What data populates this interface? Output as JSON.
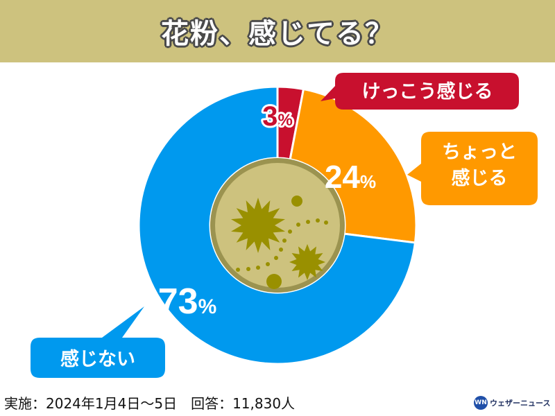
{
  "title": "花粉、感じてる？",
  "chart_data": {
    "type": "pie",
    "donut": true,
    "start_angle_deg": 0,
    "direction": "clockwise",
    "slices": [
      {
        "label": "けっこう感じる",
        "value": 3,
        "display": "3",
        "color": "#c8102e"
      },
      {
        "label": "ちょっと\n感じる",
        "value": 24,
        "display": "24",
        "color": "#ff9900"
      },
      {
        "label": "感じない",
        "value": 73,
        "display": "73",
        "color": "#0099ee"
      }
    ],
    "unit": "%"
  },
  "footer": {
    "date": "実施：2024年1月4日～5日",
    "responses": "回答：11,830人"
  },
  "brand": {
    "logo_text": "WN",
    "name": "ウェザーニュース"
  },
  "colors": {
    "title_bg": "#cdc27e",
    "center_fill": "#cdc27e",
    "center_ring": "#9b9350",
    "pollen": "#999000"
  }
}
